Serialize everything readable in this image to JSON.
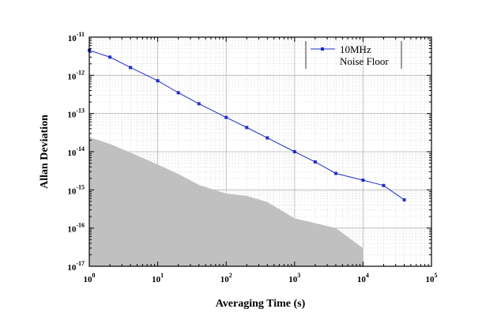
{
  "chart_data": {
    "type": "line",
    "title": "",
    "xlabel": "Averaging Time (s)",
    "ylabel": "Allan Deviation",
    "x_scale": "log",
    "y_scale": "log",
    "xlim": [
      1,
      100000
    ],
    "ylim": [
      1e-17,
      1e-11
    ],
    "x_ticks": [
      {
        "value": 1,
        "base": "10",
        "exp": "0"
      },
      {
        "value": 10,
        "base": "10",
        "exp": "1"
      },
      {
        "value": 100,
        "base": "10",
        "exp": "2"
      },
      {
        "value": 1000,
        "base": "10",
        "exp": "3"
      },
      {
        "value": 10000,
        "base": "10",
        "exp": "4"
      },
      {
        "value": 100000,
        "base": "10",
        "exp": "5"
      }
    ],
    "y_ticks": [
      {
        "value": 1e-17,
        "base": "10",
        "exp": "-17"
      },
      {
        "value": 1e-16,
        "base": "10",
        "exp": "-16"
      },
      {
        "value": 1e-15,
        "base": "10",
        "exp": "-15"
      },
      {
        "value": 1e-14,
        "base": "10",
        "exp": "-14"
      },
      {
        "value": 1e-13,
        "base": "10",
        "exp": "-13"
      },
      {
        "value": 1e-12,
        "base": "10",
        "exp": "-12"
      },
      {
        "value": 1e-11,
        "base": "10",
        "exp": "-11"
      }
    ],
    "grid": true,
    "legend_position": "top-right",
    "series": [
      {
        "name": "10MHz",
        "kind": "line-markers",
        "color": "#1f2fc8",
        "x": [
          1,
          2,
          4,
          10,
          20,
          40,
          100,
          200,
          400,
          1000,
          2000,
          4000,
          10000,
          20000,
          40000
        ],
        "y": [
          4.5e-12,
          3e-12,
          1.6e-12,
          7.2e-13,
          3.5e-13,
          1.8e-13,
          7.9e-14,
          4.3e-14,
          2.3e-14,
          1e-14,
          5.4e-15,
          2.7e-15,
          1.8e-15,
          1.3e-15,
          5.5e-16
        ]
      },
      {
        "name": "Noise Floor",
        "kind": "area",
        "color": "#c0c0c0",
        "x": [
          1,
          2,
          4,
          10,
          20,
          40,
          100,
          200,
          400,
          1000,
          2000,
          4000,
          10000
        ],
        "y": [
          2.4e-14,
          1.6e-14,
          9.5e-15,
          4.6e-15,
          2.6e-15,
          1.35e-15,
          8e-16,
          7e-16,
          4.8e-16,
          1.8e-16,
          1.35e-16,
          1e-16,
          3e-17
        ]
      }
    ]
  }
}
